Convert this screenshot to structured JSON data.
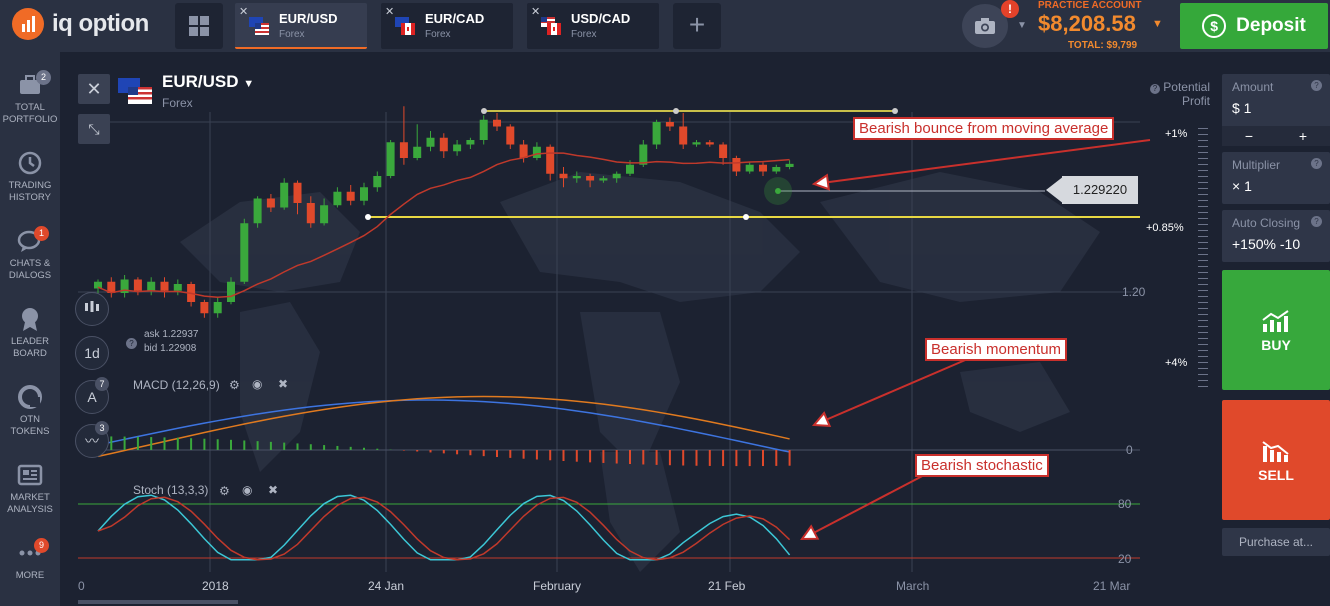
{
  "brand": {
    "name": "iq option"
  },
  "header": {
    "tabs": [
      {
        "pair": "EUR/USD",
        "kind": "Forex",
        "flag": "eu-us"
      },
      {
        "pair": "EUR/CAD",
        "kind": "Forex",
        "flag": "eu-ca"
      },
      {
        "pair": "USD/CAD",
        "kind": "Forex",
        "flag": "us-ca"
      }
    ],
    "account_label": "PRACTICE ACCOUNT",
    "balance": "$8,208.58",
    "total": "TOTAL: $9,799",
    "camera_badge": "!",
    "deposit_label": "Deposit"
  },
  "sidebar": {
    "items": [
      {
        "label1": "TOTAL",
        "label2": "PORTFOLIO",
        "icon": "briefcase-icon",
        "badge": "2"
      },
      {
        "label1": "TRADING",
        "label2": "HISTORY",
        "icon": "history-icon",
        "badge": ""
      },
      {
        "label1": "CHATS &",
        "label2": "DIALOGS",
        "icon": "chat-icon",
        "badge": "1"
      },
      {
        "label1": "LEADER",
        "label2": "BOARD",
        "icon": "medal-icon",
        "badge": ""
      },
      {
        "label1": "OTN",
        "label2": "TOKENS",
        "icon": "token-icon",
        "badge": ""
      },
      {
        "label1": "MARKET",
        "label2": "ANALYSIS",
        "icon": "news-icon",
        "badge": ""
      },
      {
        "label1": "MORE",
        "label2": "",
        "icon": "more-icon",
        "badge": "9"
      }
    ]
  },
  "asset": {
    "name": "EUR/USD",
    "kind": "Forex"
  },
  "potential_profit": "Potential Profit",
  "tools": {
    "timeframe": "1d",
    "indicators_badge": "7",
    "drawings_badge": "3"
  },
  "quotes": {
    "ask": "ask 1.22937",
    "bid": "bid 1.22908"
  },
  "indicators": {
    "macd": "MACD (12,26,9)",
    "stoch": "Stoch (13,3,3)"
  },
  "chart_data": {
    "type": "candlestick",
    "instrument": "EUR/USD",
    "current_price": "1.229220",
    "y_price_label": "1.20",
    "x_labels": [
      "0",
      "2018",
      "24 Jan",
      "February",
      "21 Feb",
      "March",
      "21 Mar"
    ],
    "pct_labels": [
      "+1%",
      "+0.85%",
      "+4%"
    ],
    "macd_zero": "0",
    "stoch_levels": [
      "80",
      "20"
    ],
    "candles": [
      [
        1.2015,
        1.203,
        1.199,
        1.2035
      ],
      [
        1.203,
        1.2005,
        1.1995,
        1.204
      ],
      [
        1.2005,
        1.2035,
        1.1995,
        1.2045
      ],
      [
        1.2035,
        1.201,
        1.2,
        1.204
      ],
      [
        1.201,
        1.203,
        1.2,
        1.204
      ],
      [
        1.203,
        1.201,
        1.1995,
        1.204
      ],
      [
        1.201,
        1.2025,
        1.2,
        1.2035
      ],
      [
        1.2025,
        1.1985,
        1.1975,
        1.203
      ],
      [
        1.1985,
        1.196,
        1.195,
        1.199
      ],
      [
        1.196,
        1.1985,
        1.195,
        1.1995
      ],
      [
        1.1985,
        1.203,
        1.198,
        1.204
      ],
      [
        1.203,
        1.216,
        1.2025,
        1.217
      ],
      [
        1.216,
        1.2215,
        1.215,
        1.222
      ],
      [
        1.2215,
        1.2195,
        1.2185,
        1.2225
      ],
      [
        1.2195,
        1.225,
        1.219,
        1.226
      ],
      [
        1.225,
        1.2205,
        1.218,
        1.2255
      ],
      [
        1.2205,
        1.216,
        1.215,
        1.222
      ],
      [
        1.216,
        1.22,
        1.2155,
        1.2215
      ],
      [
        1.22,
        1.223,
        1.2195,
        1.224
      ],
      [
        1.223,
        1.221,
        1.22,
        1.2245
      ],
      [
        1.221,
        1.224,
        1.22,
        1.225
      ],
      [
        1.224,
        1.2265,
        1.223,
        1.2275
      ],
      [
        1.2265,
        1.234,
        1.226,
        1.2345
      ],
      [
        1.234,
        1.2305,
        1.229,
        1.242
      ],
      [
        1.2305,
        1.233,
        1.23,
        1.238
      ],
      [
        1.233,
        1.235,
        1.232,
        1.2365
      ],
      [
        1.235,
        1.232,
        1.2305,
        1.236
      ],
      [
        1.232,
        1.2335,
        1.231,
        1.2345
      ],
      [
        1.2335,
        1.2345,
        1.2325,
        1.235
      ],
      [
        1.2345,
        1.239,
        1.2335,
        1.24
      ],
      [
        1.239,
        1.2375,
        1.2365,
        1.2405
      ],
      [
        1.2375,
        1.2335,
        1.2325,
        1.238
      ],
      [
        1.2335,
        1.2305,
        1.2295,
        1.2345
      ],
      [
        1.2305,
        1.233,
        1.23,
        1.234
      ],
      [
        1.233,
        1.227,
        1.2255,
        1.2335
      ],
      [
        1.227,
        1.226,
        1.224,
        1.2285
      ],
      [
        1.226,
        1.2265,
        1.225,
        1.2275
      ],
      [
        1.2265,
        1.2255,
        1.224,
        1.227
      ],
      [
        1.2255,
        1.226,
        1.225,
        1.2265
      ],
      [
        1.226,
        1.227,
        1.225,
        1.2275
      ],
      [
        1.227,
        1.229,
        1.2265,
        1.23
      ],
      [
        1.229,
        1.2335,
        1.2285,
        1.2345
      ],
      [
        1.2335,
        1.2385,
        1.2325,
        1.239
      ],
      [
        1.2385,
        1.2375,
        1.2365,
        1.2395
      ],
      [
        1.2375,
        1.2335,
        1.2325,
        1.2405
      ],
      [
        1.2335,
        1.234,
        1.233,
        1.2345
      ],
      [
        1.234,
        1.2335,
        1.233,
        1.2345
      ],
      [
        1.2335,
        1.2305,
        1.229,
        1.234
      ],
      [
        1.2305,
        1.2275,
        1.2265,
        1.231
      ],
      [
        1.2275,
        1.229,
        1.227,
        1.2295
      ],
      [
        1.229,
        1.2275,
        1.2265,
        1.2295
      ],
      [
        1.2275,
        1.2285,
        1.227,
        1.229
      ],
      [
        1.2285,
        1.2292,
        1.228,
        1.23
      ]
    ],
    "callouts": [
      "Bearish bounce from moving average",
      "Bearish momentum",
      "Bearish stochastic"
    ]
  },
  "right_panel": {
    "amount_label": "Amount",
    "amount_value": "$ 1",
    "multiplier_label": "Multiplier",
    "multiplier_value": "× 1",
    "auto_label": "Auto Closing",
    "auto_value": "+150% -10",
    "buy_label": "BUY",
    "sell_label": "SELL",
    "purchase_label": "Purchase at..."
  },
  "colors": {
    "bull": "#3aa83c",
    "bear": "#e0492b",
    "ma": "#c0392b",
    "macd": "#3d74e0",
    "signal": "#e07a1f",
    "support": "#e8d843",
    "accent": "#f06b26"
  }
}
